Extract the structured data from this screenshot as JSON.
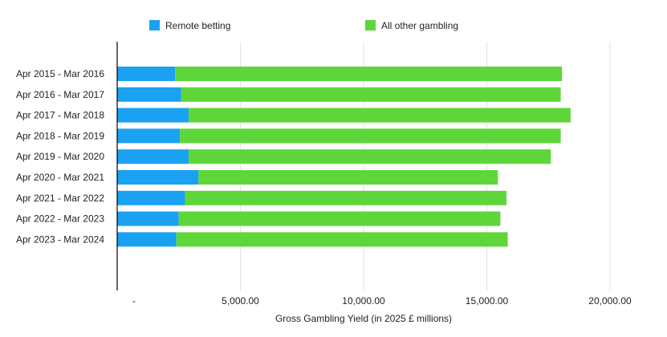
{
  "chart_data": {
    "type": "bar",
    "orientation": "horizontal",
    "stacked": true,
    "categories": [
      "Apr 2015 - Mar 2016",
      "Apr 2016 - Mar 2017",
      "Apr 2017 - Mar 2018",
      "Apr 2018 - Mar 2019",
      "Apr 2019 - Mar 2020",
      "Apr 2020 - Mar 2021",
      "Apr 2021 - Mar 2022",
      "Apr 2022 - Mar 2023",
      "Apr 2023 - Mar 2024"
    ],
    "series": [
      {
        "name": "Remote betting",
        "color": "#1aa1f2",
        "values": [
          2350,
          2600,
          2900,
          2550,
          2900,
          3300,
          2750,
          2500,
          2400
        ]
      },
      {
        "name": "All other gambling",
        "color": "#5ed63a",
        "values": [
          15700,
          15400,
          15500,
          15450,
          14700,
          12150,
          13050,
          13050,
          13450
        ]
      }
    ],
    "xlabel": "Gross Gambling Yield (in 2025 £ millions)",
    "xlim": [
      0,
      20000
    ],
    "xticks": [
      {
        "value": 0,
        "label": "-"
      },
      {
        "value": 5000,
        "label": "5,000.00"
      },
      {
        "value": 10000,
        "label": "10,000.00"
      },
      {
        "value": 15000,
        "label": "15,000.00"
      },
      {
        "value": 20000,
        "label": "20,000.00"
      }
    ],
    "grid": "vertical",
    "legend": "top"
  }
}
